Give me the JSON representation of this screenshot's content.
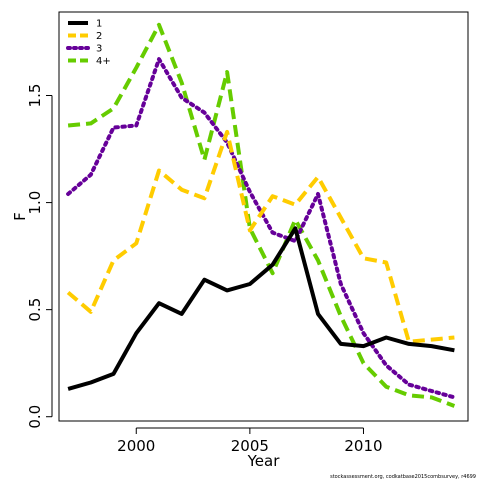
{
  "chart_data": {
    "type": "line",
    "title": "",
    "xlabel": "Year",
    "ylabel": "F",
    "xlim": [
      1996.6,
      2014.6
    ],
    "ylim": [
      -0.02,
      1.89
    ],
    "x_ticks": [
      2000,
      2005,
      2010
    ],
    "x_tick_labels": [
      "2000",
      "2005",
      "2010"
    ],
    "y_ticks": [
      0.0,
      0.5,
      1.0,
      1.5
    ],
    "y_tick_labels": [
      "0.0",
      "0.5",
      "1.0",
      "1.5"
    ],
    "grid": false,
    "legend_position": "top-left",
    "x": [
      1997,
      1998,
      1999,
      2000,
      2001,
      2002,
      2003,
      2004,
      2005,
      2006,
      2007,
      2008,
      2009,
      2010,
      2011,
      2012,
      2013,
      2014
    ],
    "series": [
      {
        "name": "1",
        "color": "#000000",
        "dash": "solid",
        "values": [
          0.13,
          0.16,
          0.2,
          0.39,
          0.53,
          0.48,
          0.64,
          0.59,
          0.62,
          0.71,
          0.88,
          0.48,
          0.34,
          0.33,
          0.37,
          0.34,
          0.33,
          0.31
        ]
      },
      {
        "name": "2",
        "color": "#FFCC00",
        "dash": "dashed",
        "values": [
          0.58,
          0.49,
          0.73,
          0.81,
          1.15,
          1.06,
          1.02,
          1.33,
          0.87,
          1.03,
          0.99,
          1.12,
          0.93,
          0.74,
          0.72,
          0.35,
          0.36,
          0.37
        ]
      },
      {
        "name": "3",
        "color": "#660099",
        "dash": "dotted",
        "values": [
          1.04,
          1.13,
          1.35,
          1.36,
          1.67,
          1.49,
          1.42,
          1.28,
          1.05,
          0.86,
          0.82,
          1.04,
          0.62,
          0.39,
          0.24,
          0.15,
          0.12,
          0.09
        ]
      },
      {
        "name": "4+",
        "color": "#66CC00",
        "dash": "dashed",
        "values": [
          1.36,
          1.37,
          1.44,
          1.63,
          1.83,
          1.56,
          1.2,
          1.61,
          0.88,
          0.67,
          0.92,
          0.73,
          0.47,
          0.25,
          0.14,
          0.1,
          0.09,
          0.05
        ]
      }
    ]
  },
  "footer": {
    "credit": "stockassessment.org, codkatbase2015combsurvey, r4699"
  }
}
